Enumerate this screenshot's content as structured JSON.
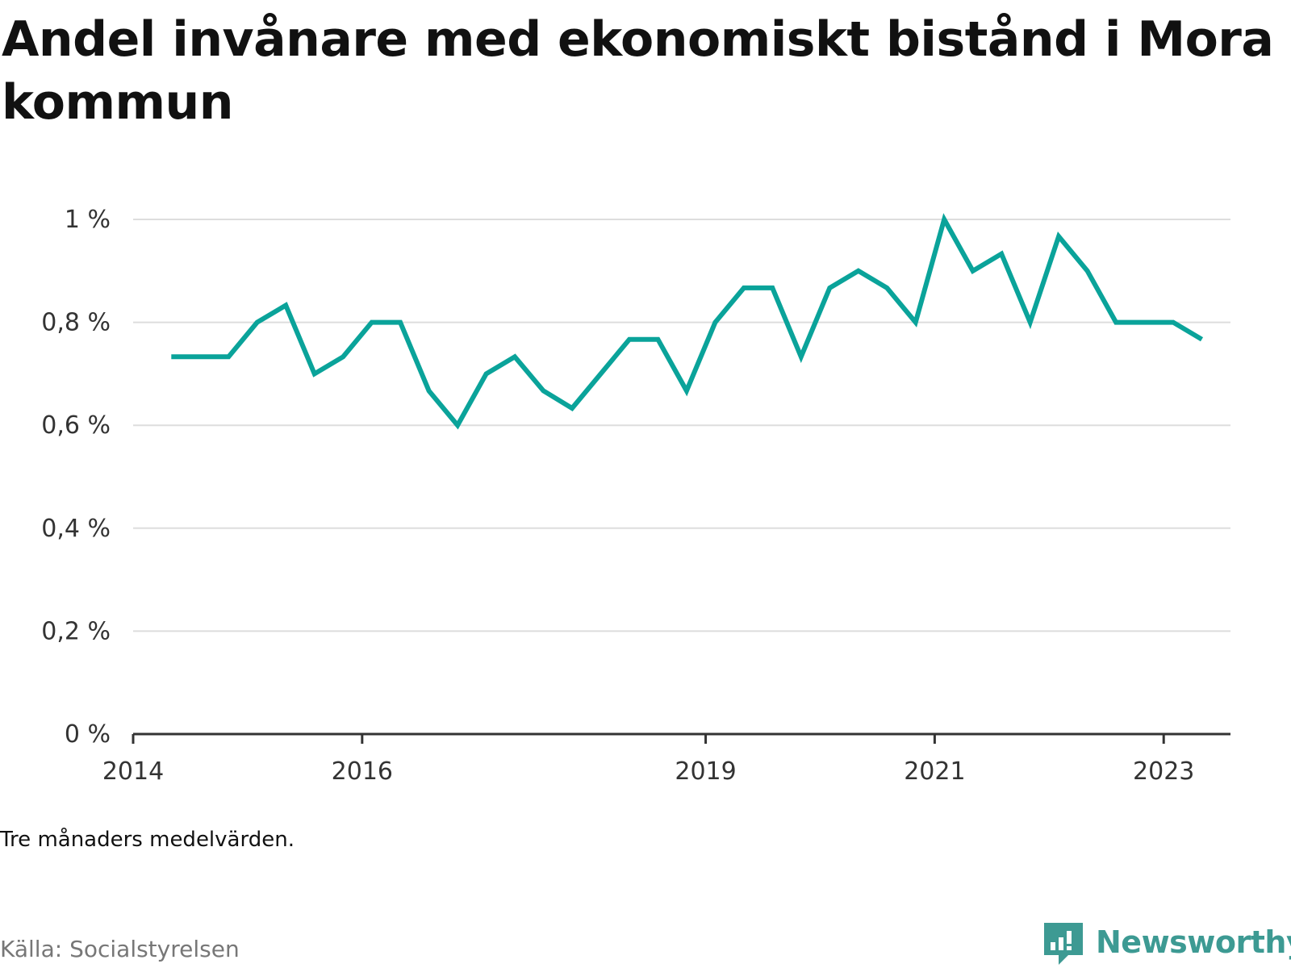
{
  "title": "Andel invånare med ekonomiskt bistånd i Mora kommun",
  "note": "Tre månaders medelvärden.",
  "source": "Källa: Socialstyrelsen",
  "brand": "Newsworthy",
  "colors": {
    "line": "#0aa39a",
    "grid": "#dddddd",
    "axis": "#333333",
    "brand": "#3d9a93"
  },
  "chart_data": {
    "type": "line",
    "title": "Andel invånare med ekonomiskt bistånd i Mora kommun",
    "xlabel": "",
    "ylabel": "",
    "x_ticks": [
      "2014",
      "2016",
      "2019",
      "2021",
      "2023"
    ],
    "y_ticks": [
      "0 %",
      "0,2 %",
      "0,4 %",
      "0,6 %",
      "0,8 %",
      "1 %"
    ],
    "ylim": [
      0,
      1.0
    ],
    "xlim": [
      "2014-01",
      "2023-08"
    ],
    "grid": true,
    "series": [
      {
        "x": [
          "2014-05",
          "2014-08",
          "2014-11",
          "2015-02",
          "2015-05",
          "2015-08",
          "2015-11",
          "2016-02",
          "2016-05",
          "2016-08",
          "2016-11",
          "2017-02",
          "2017-05",
          "2017-08",
          "2017-11",
          "2018-02",
          "2018-05",
          "2018-08",
          "2018-11",
          "2019-02",
          "2019-05",
          "2019-08",
          "2019-11",
          "2020-02",
          "2020-05",
          "2020-08",
          "2020-11",
          "2021-02",
          "2021-05",
          "2021-08",
          "2021-11",
          "2022-02",
          "2022-05",
          "2022-08",
          "2022-11",
          "2023-02",
          "2023-05"
        ],
        "values": [
          0.733,
          0.733,
          0.733,
          0.8,
          0.833,
          0.7,
          0.733,
          0.8,
          0.8,
          0.667,
          0.6,
          0.7,
          0.733,
          0.667,
          0.633,
          0.7,
          0.767,
          0.767,
          0.667,
          0.8,
          0.867,
          0.867,
          0.733,
          0.867,
          0.9,
          0.867,
          0.8,
          1.0,
          0.9,
          0.933,
          0.8,
          0.967,
          0.9,
          0.8,
          0.8,
          0.8,
          0.767
        ]
      }
    ]
  }
}
